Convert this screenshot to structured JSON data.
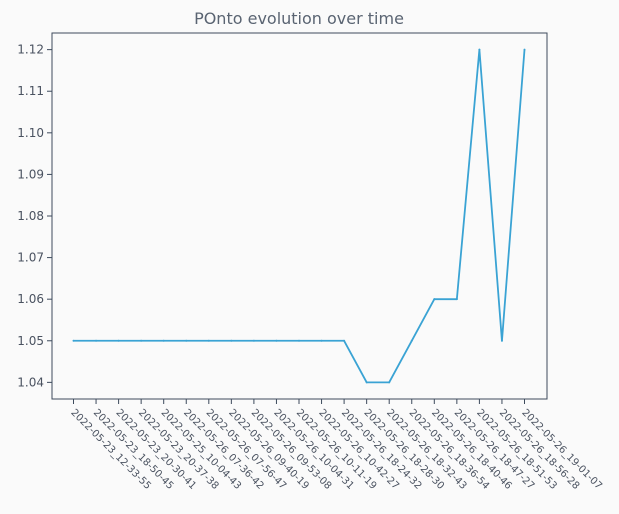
{
  "chart_data": {
    "type": "line",
    "title": "POnto evolution over time",
    "xlabel": "",
    "ylabel": "",
    "ylim": [
      1.036,
      1.124
    ],
    "yticks": [
      1.04,
      1.05,
      1.06,
      1.07,
      1.08,
      1.09,
      1.1,
      1.11,
      1.12
    ],
    "ytick_labels": [
      "1.04",
      "1.05",
      "1.06",
      "1.07",
      "1.08",
      "1.09",
      "1.10",
      "1.11",
      "1.12"
    ],
    "grid": false,
    "line_color": "#3aa3d4",
    "categories": [
      "2022-05-23_12-33-55",
      "2022-05-23_18-50-45",
      "2022-05-23_20-30-41",
      "2022-05-23_20-37-38",
      "2022-05-25_10-04-43",
      "2022-05-26_07-36-42",
      "2022-05-26_07-56-47",
      "2022-05-26_09-40-19",
      "2022-05-26_09-53-08",
      "2022-05-26_10-04-31",
      "2022-05-26_10-11-19",
      "2022-05-26_10-42-27",
      "2022-05-26_18-24-32",
      "2022-05-26_18-28-30",
      "2022-05-26_18-32-43",
      "2022-05-26_18-36-54",
      "2022-05-26_18-40-46",
      "2022-05-26_18-47-27",
      "2022-05-26_18-51-53",
      "2022-05-26_18-56-28",
      "2022-05-26_19-01-07"
    ],
    "values": [
      1.05,
      1.05,
      1.05,
      1.05,
      1.05,
      1.05,
      1.05,
      1.05,
      1.05,
      1.05,
      1.05,
      1.05,
      1.05,
      1.04,
      1.04,
      1.05,
      1.06,
      1.06,
      1.12,
      1.05,
      1.12
    ]
  }
}
